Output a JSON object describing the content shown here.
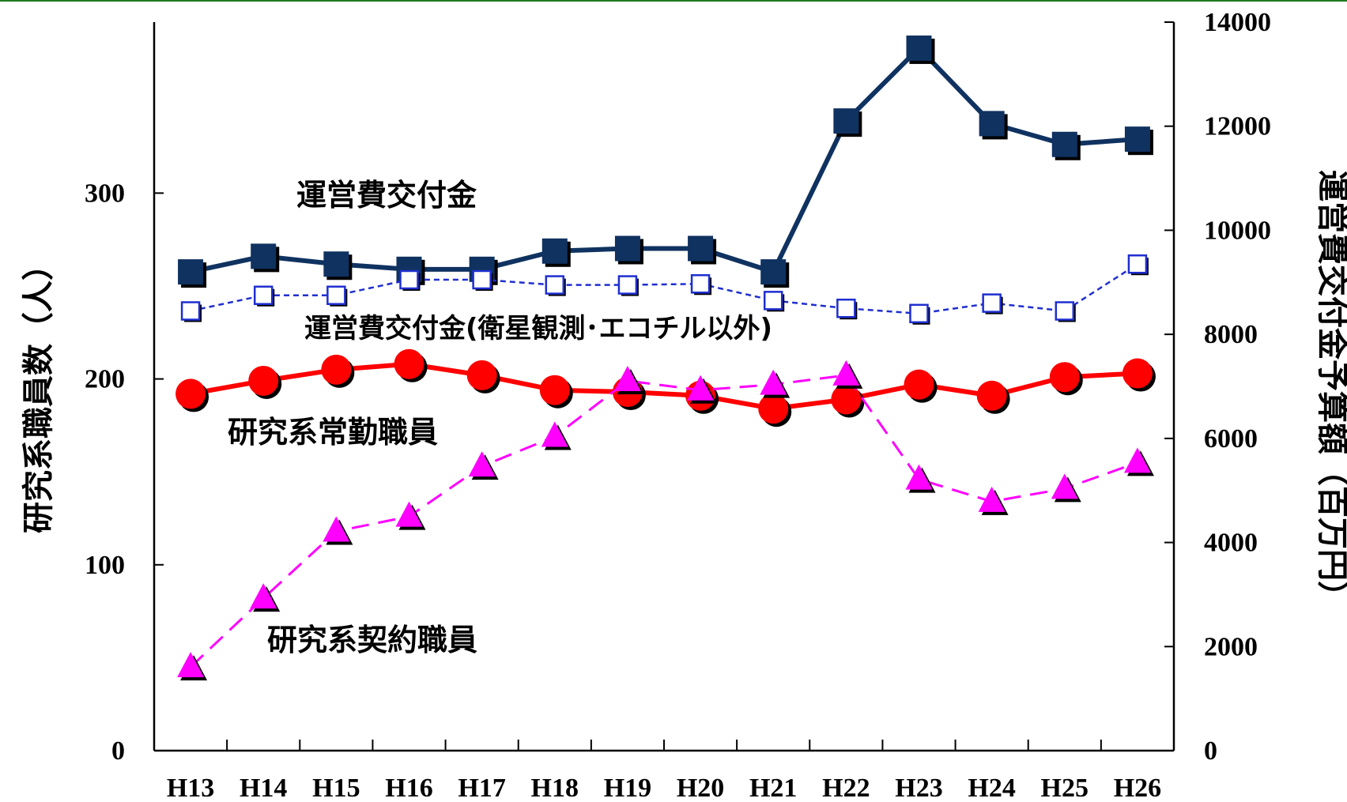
{
  "chart_data": {
    "type": "line",
    "categories": [
      "H13",
      "H14",
      "H15",
      "H16",
      "H17",
      "H18",
      "H19",
      "H20",
      "H21",
      "H22",
      "H23",
      "H24",
      "H25",
      "H26"
    ],
    "left_axis": {
      "label": "研究系職員数（人）",
      "ylim": [
        0,
        392
      ],
      "ticks": [
        0,
        100,
        200,
        300
      ]
    },
    "right_axis": {
      "label": "運営費交付金予算額（百万円）",
      "ylim": [
        0,
        14000
      ],
      "ticks": [
        0,
        2000,
        4000,
        6000,
        8000,
        10000,
        12000,
        14000
      ]
    },
    "series": [
      {
        "name": "運営費交付金",
        "axis": "right",
        "color": "#0f3260",
        "marker": "filled-square",
        "line": "solid",
        "values": [
          9200,
          9500,
          9350,
          9250,
          9250,
          9600,
          9650,
          9650,
          9200,
          12100,
          13500,
          12050,
          11650,
          11750
        ]
      },
      {
        "name": "運営費交付金(衛星観測･エコチル以外)",
        "axis": "right",
        "color": "#1f2fd0",
        "marker": "hollow-square",
        "line": "dotted",
        "values": [
          8450,
          8750,
          8750,
          9050,
          9050,
          8950,
          8950,
          8970,
          8650,
          8500,
          8400,
          8600,
          8450,
          9350
        ]
      },
      {
        "name": "研究系常勤職員",
        "axis": "left",
        "color": "#ff0000",
        "marker": "circle",
        "line": "solid",
        "values": [
          192,
          199,
          205,
          208,
          202,
          194,
          193,
          191,
          184,
          189,
          197,
          191,
          201,
          203
        ]
      },
      {
        "name": "研究系契約職員",
        "axis": "left",
        "color": "#ff00ff",
        "marker": "triangle",
        "line": "dashed",
        "values": [
          45,
          82,
          118,
          126,
          153,
          169,
          199,
          194,
          197,
          202,
          146,
          134,
          141,
          155
        ]
      }
    ],
    "annotations": {
      "unei": "運営費交付金",
      "unei_other": "運営費交付金(衛星観測･エコチル以外)",
      "jokin": "研究系常勤職員",
      "keiyaku": "研究系契約職員"
    }
  },
  "colors": {
    "accent_bar": "#1e7a1e"
  }
}
